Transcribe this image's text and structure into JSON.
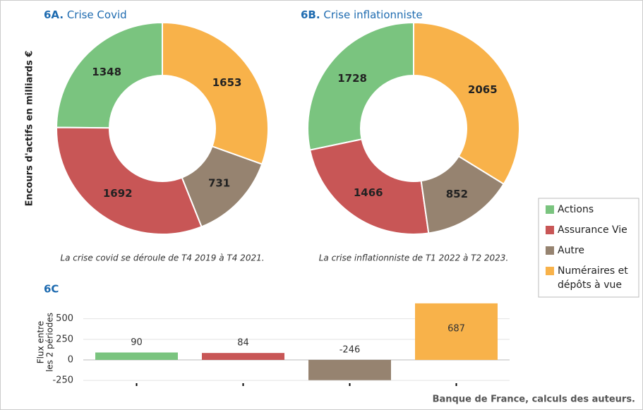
{
  "ylabel": "Encours d'actifs en milliards €",
  "source": "Banque de France, calculs des auteurs.",
  "chart_data": [
    {
      "type": "donut",
      "label": "6A.",
      "title": "Crise Covid",
      "categories": [
        "Actions",
        "Assurance Vie",
        "Autre",
        "Numéraires et dépôts à vue"
      ],
      "values": [
        1348,
        1692,
        731,
        1653
      ],
      "colors": [
        "#7ac47f",
        "#c85656",
        "#968370",
        "#f8b24a"
      ],
      "note": "La crise covid se déroule de T4 2019 à T4 2021."
    },
    {
      "type": "donut",
      "label": "6B.",
      "title": "Crise inflationniste",
      "categories": [
        "Actions",
        "Assurance Vie",
        "Autre",
        "Numéraires et dépôts à vue"
      ],
      "values": [
        1728,
        1466,
        852,
        2065
      ],
      "colors": [
        "#7ac47f",
        "#c85656",
        "#968370",
        "#f8b24a"
      ],
      "note": "La crise inflationniste de T1 2022 à T2 2023."
    },
    {
      "type": "bar",
      "label": "6C",
      "ylabel": [
        "Flux entre",
        "les 2 périodes"
      ],
      "values": [
        90,
        84,
        -246,
        687
      ],
      "colors": [
        "#7ac47f",
        "#c85656",
        "#968370",
        "#f8b24a"
      ],
      "ylim": [
        -300,
        720
      ],
      "yticks": [
        -250,
        0,
        250,
        500
      ],
      "grid": true
    }
  ]
}
